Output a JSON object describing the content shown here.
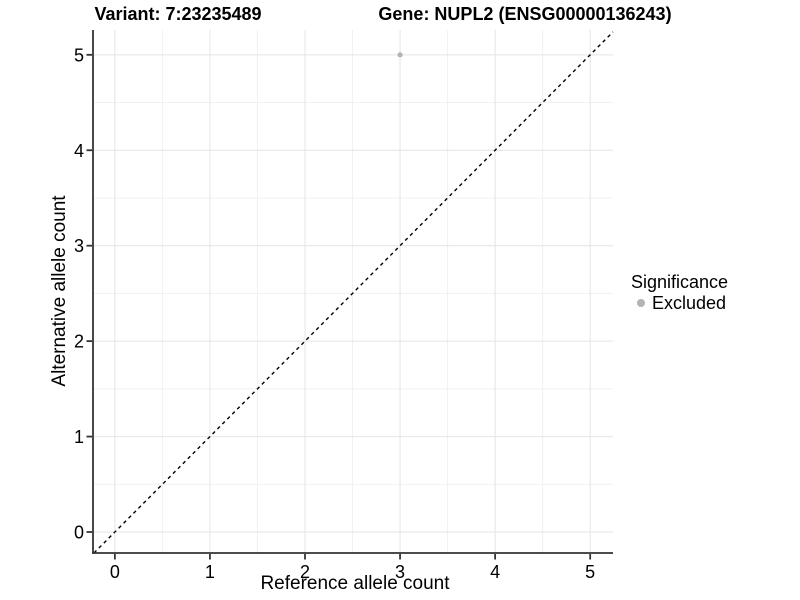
{
  "titles": {
    "left": "Variant: 7:23235489",
    "right": "Gene: NUPL2 (ENSG00000136243)"
  },
  "legend": {
    "title": "Significance",
    "items": [
      {
        "label": "Excluded",
        "color": "#b4b4b4"
      }
    ]
  },
  "chart_data": {
    "type": "scatter",
    "title_left": "Variant: 7:23235489",
    "title_right": "Gene: NUPL2 (ENSG00000136243)",
    "xlabel": "Reference allele count",
    "ylabel": "Alternative allele count",
    "xlim": [
      -0.23,
      5.24
    ],
    "ylim": [
      -0.22,
      5.26
    ],
    "x_ticks": [
      0,
      1,
      2,
      3,
      4,
      5
    ],
    "y_ticks": [
      0,
      1,
      2,
      3,
      4,
      5
    ],
    "grid": true,
    "minor_grid": true,
    "legend_position": "right",
    "series": [
      {
        "name": "Excluded",
        "color": "#b4b4b4",
        "points": [
          {
            "x": 3,
            "y": 5
          }
        ]
      }
    ],
    "reference_line": {
      "type": "identity",
      "slope": 1,
      "intercept": 0,
      "style": "dashed",
      "color": "#000000"
    }
  },
  "colors": {
    "background": "#ffffff",
    "grid_major": "#e4e4e4",
    "grid_minor": "#f1f1f1",
    "axis": "#333333",
    "text": "#000000"
  }
}
